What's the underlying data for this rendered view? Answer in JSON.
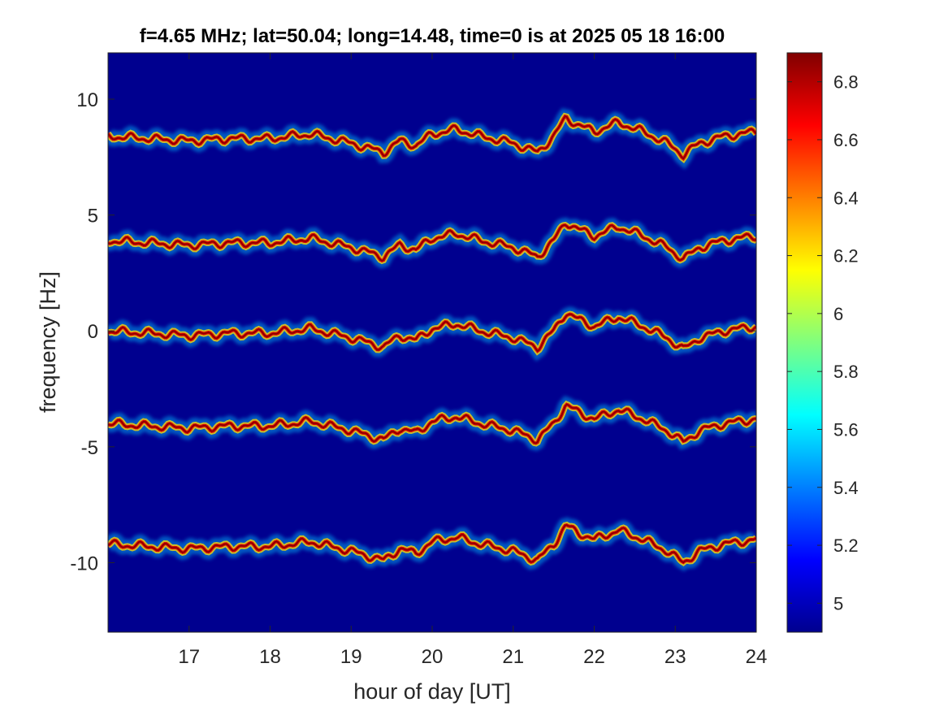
{
  "chart_data": {
    "type": "heatmap",
    "title": "f=4.65 MHz;  lat=50.04; long=14.48, time=0 is at 2025 05 18 16:00",
    "xlabel": "hour of day [UT]",
    "ylabel": "frequency [Hz]",
    "xlim": [
      16,
      24
    ],
    "ylim": [
      -13,
      12
    ],
    "x_ticks": [
      17,
      18,
      19,
      20,
      21,
      22,
      23,
      24
    ],
    "x_tick_labels": [
      "17",
      "18",
      "19",
      "20",
      "21",
      "22",
      "23",
      "24"
    ],
    "y_ticks": [
      10,
      5,
      0,
      -5,
      -10
    ],
    "y_tick_labels": [
      "10",
      "5",
      "0",
      "-5",
      "-10"
    ],
    "colorbar": {
      "limits": [
        4.9,
        6.9
      ],
      "ticks": [
        5,
        5.2,
        5.4,
        5.6,
        5.8,
        6,
        6.2,
        6.4,
        6.6,
        6.8
      ],
      "tick_labels": [
        "5",
        "5.2",
        "5.4",
        "5.6",
        "5.8",
        "6",
        "6.2",
        "6.4",
        "6.6",
        "6.8"
      ],
      "colormap": "jet"
    },
    "background_color": "#00008f",
    "series": [
      {
        "offset": 8.4
      },
      {
        "offset": 3.9
      },
      {
        "offset": 0.0
      },
      {
        "offset": -4.0
      },
      {
        "offset": -9.2
      }
    ],
    "trace_shape": {
      "hours": [
        16.0,
        16.5,
        17.0,
        17.5,
        18.0,
        18.5,
        19.0,
        19.2,
        19.4,
        19.6,
        19.8,
        20.0,
        20.3,
        20.6,
        21.0,
        21.3,
        21.5,
        21.65,
        21.8,
        22.0,
        22.3,
        22.6,
        22.9,
        23.1,
        23.3,
        23.6,
        24.0
      ],
      "deviation": [
        0.0,
        -0.1,
        -0.2,
        -0.1,
        -0.1,
        0.1,
        -0.3,
        -0.5,
        -0.7,
        -0.2,
        -0.4,
        0.1,
        0.3,
        0.0,
        -0.3,
        -0.7,
        0.0,
        0.8,
        0.5,
        0.2,
        0.6,
        0.2,
        -0.3,
        -0.8,
        -0.3,
        0.0,
        0.2
      ]
    },
    "grid": false
  }
}
